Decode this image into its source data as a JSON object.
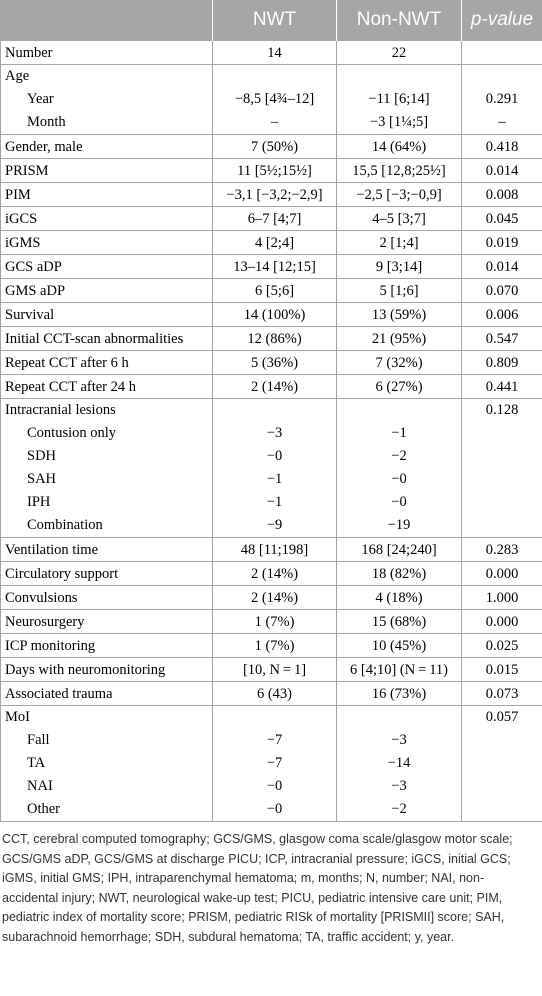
{
  "headers": [
    "",
    "NWT",
    "Non-NWT",
    "p-value"
  ],
  "rows": [
    {
      "label": "Number",
      "nwt": "14",
      "non": "22",
      "p": ""
    },
    {
      "group": "Age",
      "p": "",
      "subs": [
        {
          "label": "Year",
          "nwt": "−8,5 [4¾–12]",
          "non": "−11 [6;14]",
          "p": "0.291"
        },
        {
          "label": "Month",
          "nwt": "–",
          "non": "−3 [1¼;5]",
          "p": "–"
        }
      ]
    },
    {
      "label": "Gender, male",
      "nwt": "7 (50%)",
      "non": "14 (64%)",
      "p": "0.418"
    },
    {
      "label": "PRISM",
      "nwt": "11 [5½;15½]",
      "non": "15,5 [12,8;25½]",
      "p": "0.014"
    },
    {
      "label": "PIM",
      "nwt": "−3,1 [−3,2;−2,9]",
      "non": "−2,5 [−3;−0,9]",
      "p": "0.008"
    },
    {
      "label": "iGCS",
      "nwt": "6–7 [4;7]",
      "non": "4–5 [3;7]",
      "p": "0.045"
    },
    {
      "label": "iGMS",
      "nwt": "4 [2;4]",
      "non": "2 [1;4]",
      "p": "0.019"
    },
    {
      "label": "GCS aDP",
      "nwt": "13–14 [12;15]",
      "non": "9 [3;14]",
      "p": "0.014"
    },
    {
      "label": "GMS aDP",
      "nwt": "6 [5;6]",
      "non": "5 [1;6]",
      "p": "0.070"
    },
    {
      "label": "Survival",
      "nwt": "14 (100%)",
      "non": "13 (59%)",
      "p": "0.006"
    },
    {
      "label": "Initial CCT-scan abnormalities",
      "nwt": "12 (86%)",
      "non": "21 (95%)",
      "p": "0.547"
    },
    {
      "label": "Repeat CCT after 6 h",
      "nwt": "5 (36%)",
      "non": "7 (32%)",
      "p": "0.809"
    },
    {
      "label": "Repeat CCT after 24 h",
      "nwt": "2 (14%)",
      "non": "6 (27%)",
      "p": "0.441"
    },
    {
      "group": "Intracranial lesions",
      "p": "0.128",
      "subs": [
        {
          "label": "Contusion only",
          "nwt": "−3",
          "non": "−1",
          "p": ""
        },
        {
          "label": "SDH",
          "nwt": "−0",
          "non": "−2",
          "p": ""
        },
        {
          "label": "SAH",
          "nwt": "−1",
          "non": "−0",
          "p": ""
        },
        {
          "label": "IPH",
          "nwt": "−1",
          "non": "−0",
          "p": ""
        },
        {
          "label": "Combination",
          "nwt": "−9",
          "non": "−19",
          "p": ""
        }
      ]
    },
    {
      "label": "Ventilation time",
      "nwt": "48 [11;198]",
      "non": "168 [24;240]",
      "p": "0.283"
    },
    {
      "label": "Circulatory support",
      "nwt": "2 (14%)",
      "non": "18 (82%)",
      "p": "0.000"
    },
    {
      "label": "Convulsions",
      "nwt": "2 (14%)",
      "non": "4 (18%)",
      "p": "1.000"
    },
    {
      "label": "Neurosurgery",
      "nwt": "1 (7%)",
      "non": "15 (68%)",
      "p": "0.000"
    },
    {
      "label": "ICP monitoring",
      "nwt": "1 (7%)",
      "non": "10 (45%)",
      "p": "0.025"
    },
    {
      "label": "Days with neuromonitoring",
      "nwt": "[10, N = 1]",
      "non": "6 [4;10] (N = 11)",
      "p": "0.015"
    },
    {
      "label": "Associated trauma",
      "nwt": "6 (43)",
      "non": "16 (73%)",
      "p": "0.073"
    },
    {
      "group": "MoI",
      "p": "0.057",
      "subs": [
        {
          "label": "Fall",
          "nwt": "−7",
          "non": "−3",
          "p": ""
        },
        {
          "label": "TA",
          "nwt": "−7",
          "non": "−14",
          "p": ""
        },
        {
          "label": "NAI",
          "nwt": "−0",
          "non": "−3",
          "p": ""
        },
        {
          "label": "Other",
          "nwt": "−0",
          "non": "−2",
          "p": ""
        }
      ]
    }
  ],
  "footnote": "CCT, cerebral computed tomography; GCS/GMS, glasgow coma scale/glasgow motor scale; GCS/GMS aDP, GCS/GMS at discharge PICU; ICP, intracranial pressure; iGCS, initial GCS; iGMS, initial GMS; IPH, intraparenchymal hematoma; m, months; N, number; NAI, non-accidental injury; NWT, neurological wake-up test; PICU, pediatric intensive care unit; PIM, pediatric index of mortality score; PRISM, pediatric RISk of mortality [PRISMII] score; SAH, subarachnoid hemorrhage; SDH, subdural hematoma; TA, traffic accident; y, year."
}
